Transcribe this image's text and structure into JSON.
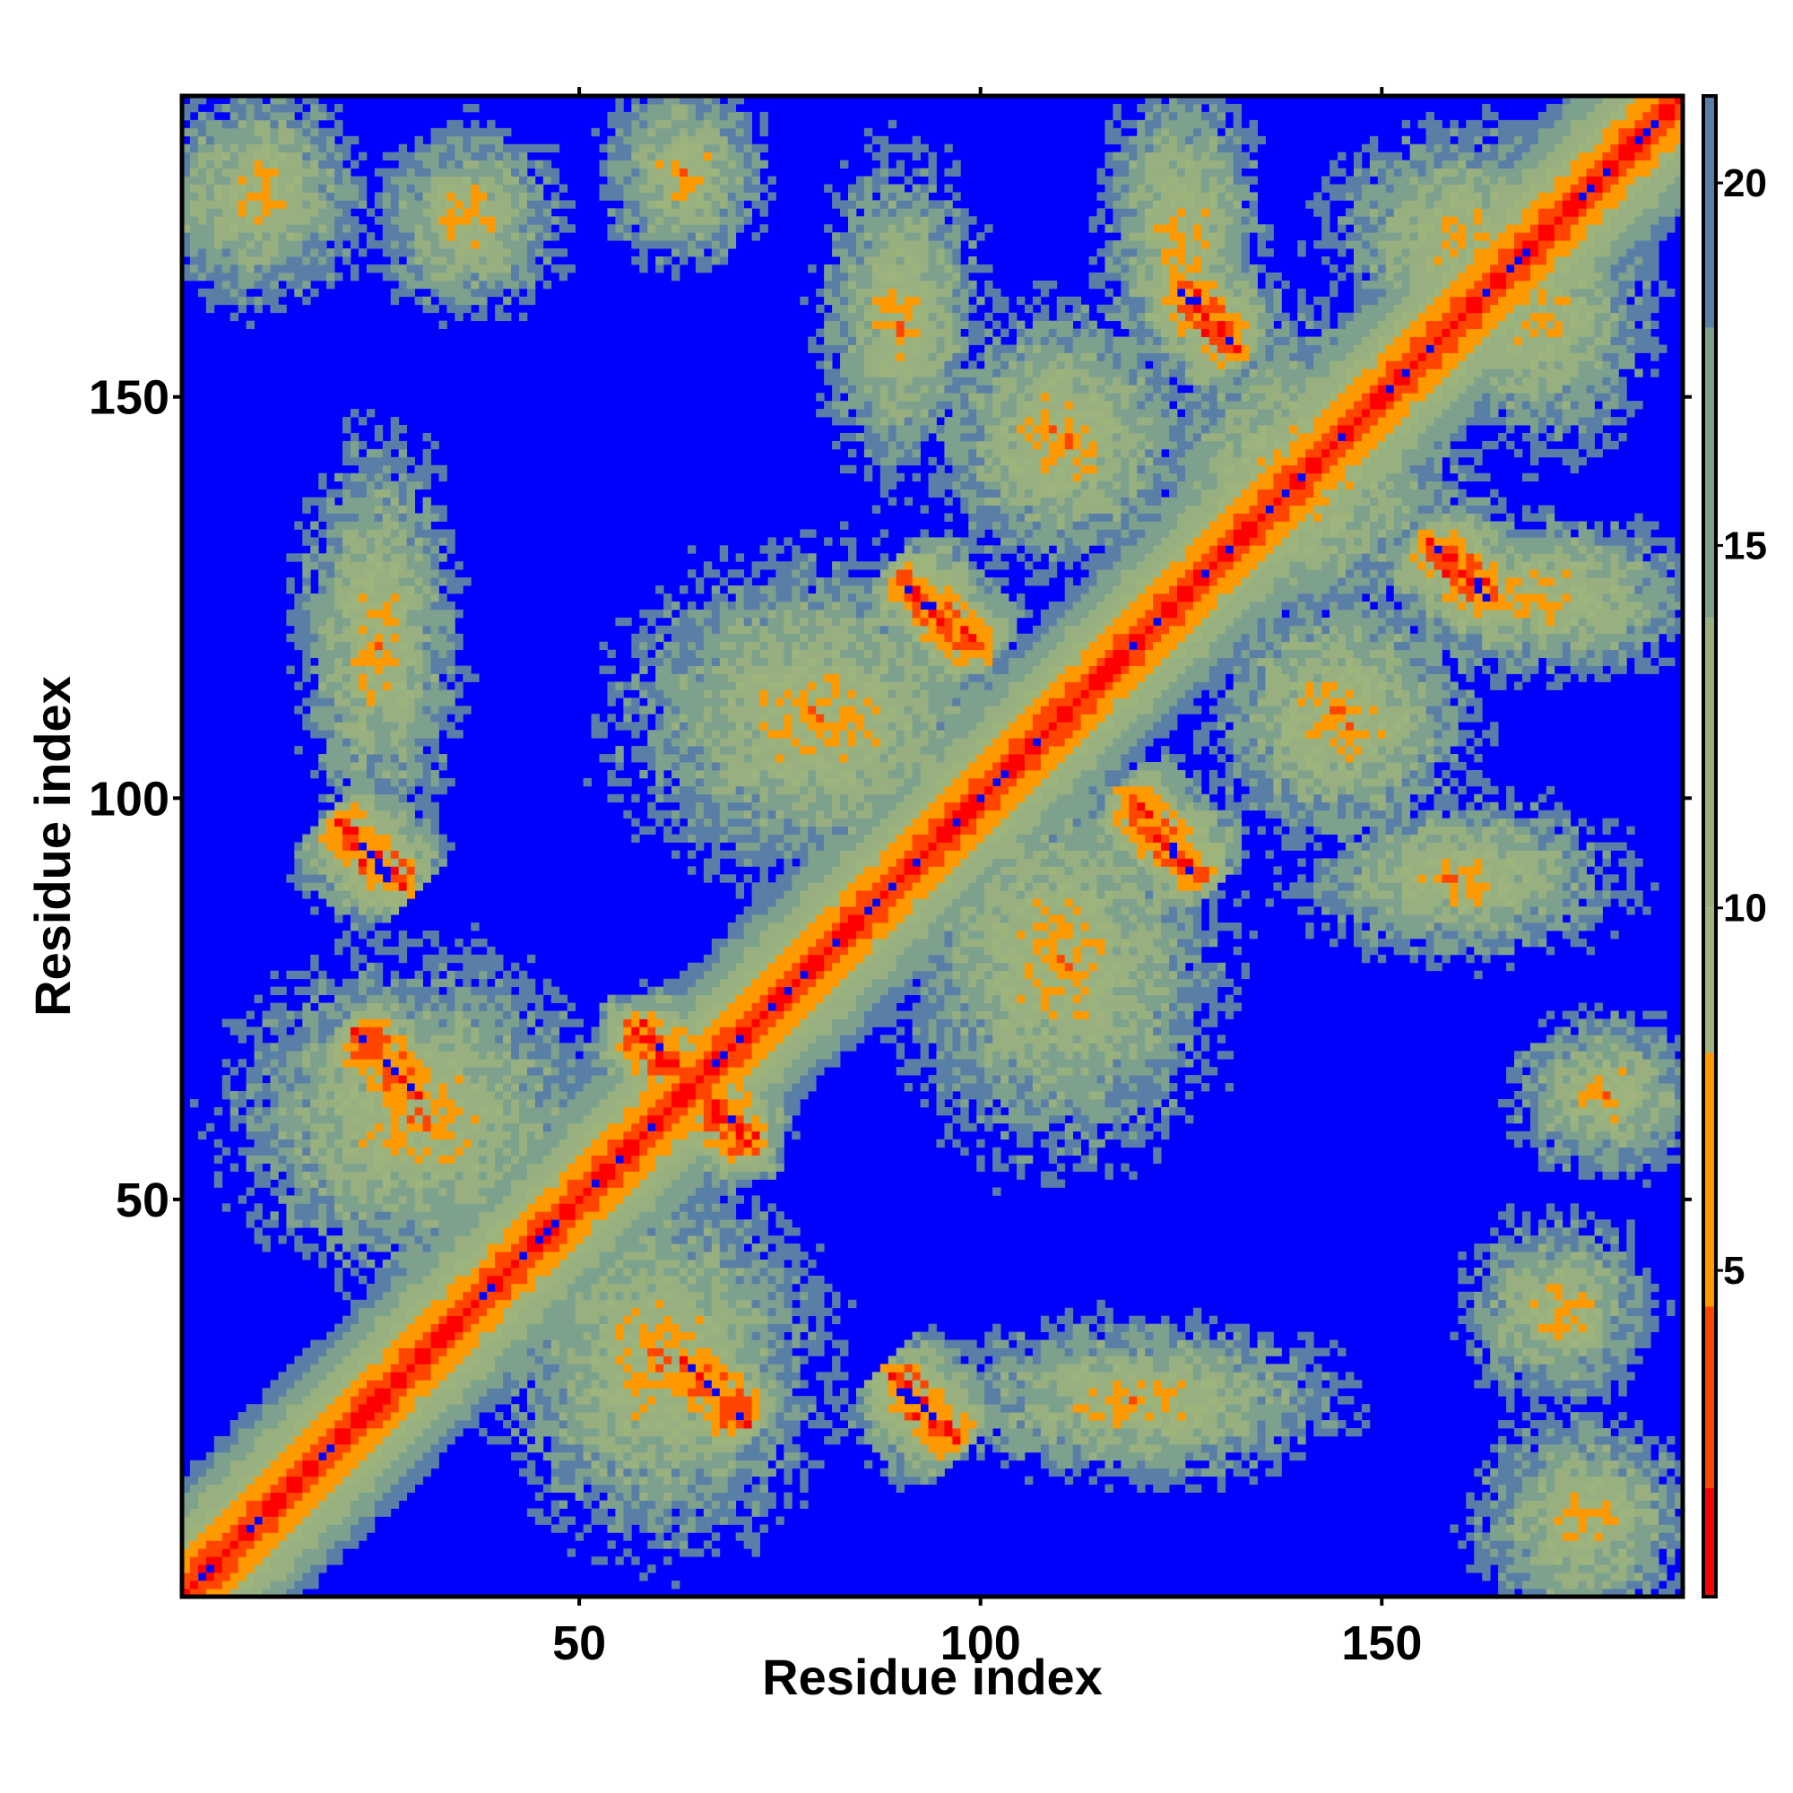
{
  "chart_data": {
    "type": "heatmap",
    "title": "",
    "xlabel": "Residue index",
    "ylabel": "Residue index",
    "n_residues": 187,
    "xlim": [
      0.5,
      187.5
    ],
    "ylim": [
      0.5,
      187.5
    ],
    "x_ticks": [
      50,
      100,
      150
    ],
    "x_tick_labels": [
      "50",
      "100",
      "150"
    ],
    "y_ticks": [
      50,
      100,
      150
    ],
    "y_tick_labels": [
      "50",
      "100",
      "150"
    ],
    "colorbar": {
      "range": [
        0.5,
        21.2
      ],
      "ticks": [
        5,
        10,
        15,
        20
      ],
      "tick_labels": [
        "5",
        "10",
        "15",
        "20"
      ],
      "bands": [
        {
          "from": 0.5,
          "to": 2.0,
          "color": "#ff0000"
        },
        {
          "from": 2.0,
          "to": 4.5,
          "color": "#ff4500"
        },
        {
          "from": 4.5,
          "to": 8.0,
          "color": "#ff9900"
        },
        {
          "from": 8.0,
          "to": 10.0,
          "color": "#9db57d"
        },
        {
          "from": 10.0,
          "to": 14.0,
          "color": "#98b080"
        },
        {
          "from": 14.0,
          "to": 18.0,
          "color": "#7ea18e"
        },
        {
          "from": 18.0,
          "to": 21.2,
          "color": "#5a7fa6"
        }
      ],
      "background_color": "#0000ff"
    },
    "grid": false,
    "legend": "colorbar-right",
    "contact_regions": [
      {
        "cx": 187,
        "cy": 187,
        "sx": 60,
        "sy": 2.5,
        "kind": "diagonal"
      },
      {
        "cx": 64,
        "cy": 64,
        "sx": 10,
        "sy": 1.5,
        "kind": "antidiagonal"
      },
      {
        "cx": 26,
        "cy": 67,
        "sx": 5,
        "sy": 1.2,
        "kind": "antidiagonal"
      },
      {
        "cx": 67,
        "cy": 26,
        "sx": 5,
        "sy": 1.2,
        "kind": "antidiagonal"
      },
      {
        "cx": 24,
        "cy": 93,
        "sx": 5,
        "sy": 1.2,
        "kind": "antidiagonal"
      },
      {
        "cx": 93,
        "cy": 24,
        "sx": 5,
        "sy": 1.2,
        "kind": "antidiagonal"
      },
      {
        "cx": 95,
        "cy": 123,
        "sx": 6,
        "sy": 1.2,
        "kind": "antidiagonal"
      },
      {
        "cx": 123,
        "cy": 95,
        "sx": 6,
        "sy": 1.2,
        "kind": "antidiagonal"
      },
      {
        "cx": 128,
        "cy": 160,
        "sx": 5,
        "sy": 1.2,
        "kind": "antidiagonal"
      },
      {
        "cx": 160,
        "cy": 128,
        "sx": 5,
        "sy": 1.2,
        "kind": "antidiagonal"
      },
      {
        "cx": 155,
        "cy": 127,
        "sx": 5,
        "sy": 1.2,
        "kind": "antidiagonal"
      },
      {
        "cx": 10,
        "cy": 175,
        "sx": 8,
        "sy": 8,
        "kind": "blob"
      },
      {
        "cx": 36,
        "cy": 172,
        "sx": 7,
        "sy": 7,
        "kind": "blob"
      },
      {
        "cx": 63,
        "cy": 178,
        "sx": 6,
        "sy": 7,
        "kind": "blob"
      },
      {
        "cx": 90,
        "cy": 160,
        "sx": 6,
        "sy": 12,
        "kind": "blob"
      },
      {
        "cx": 110,
        "cy": 145,
        "sx": 10,
        "sy": 10,
        "kind": "blob"
      },
      {
        "cx": 125,
        "cy": 170,
        "sx": 6,
        "sy": 12,
        "kind": "blob"
      },
      {
        "cx": 160,
        "cy": 170,
        "sx": 10,
        "sy": 8,
        "kind": "blob"
      },
      {
        "cx": 25,
        "cy": 120,
        "sx": 6,
        "sy": 15,
        "kind": "blob"
      },
      {
        "cx": 80,
        "cy": 110,
        "sx": 15,
        "sy": 12,
        "kind": "blob"
      },
      {
        "cx": 140,
        "cy": 110,
        "sx": 15,
        "sy": 10,
        "kind": "blob"
      },
      {
        "cx": 170,
        "cy": 125,
        "sx": 12,
        "sy": 8,
        "kind": "blob"
      },
      {
        "cx": 170,
        "cy": 95,
        "sx": 12,
        "sy": 6,
        "kind": "blob"
      },
      {
        "cx": 30,
        "cy": 60,
        "sx": 14,
        "sy": 12,
        "kind": "blob"
      },
      {
        "cx": 60,
        "cy": 30,
        "sx": 10,
        "sy": 10,
        "kind": "blob"
      },
      {
        "cx": 95,
        "cy": 30,
        "sx": 12,
        "sy": 8,
        "kind": "blob"
      },
      {
        "cx": 125,
        "cy": 30,
        "sx": 10,
        "sy": 8,
        "kind": "blob"
      },
      {
        "cx": 105,
        "cy": 80,
        "sx": 10,
        "sy": 10,
        "kind": "blob"
      },
      {
        "cx": 120,
        "cy": 65,
        "sx": 6,
        "sy": 6,
        "kind": "blob"
      },
      {
        "cx": 175,
        "cy": 65,
        "sx": 10,
        "sy": 6,
        "kind": "blob"
      },
      {
        "cx": 165,
        "cy": 40,
        "sx": 10,
        "sy": 8,
        "kind": "blob"
      },
      {
        "cx": 175,
        "cy": 15,
        "sx": 10,
        "sy": 10,
        "kind": "blob"
      },
      {
        "cx": 140,
        "cy": 140,
        "sx": 12,
        "sy": 12,
        "kind": "blob"
      }
    ]
  }
}
